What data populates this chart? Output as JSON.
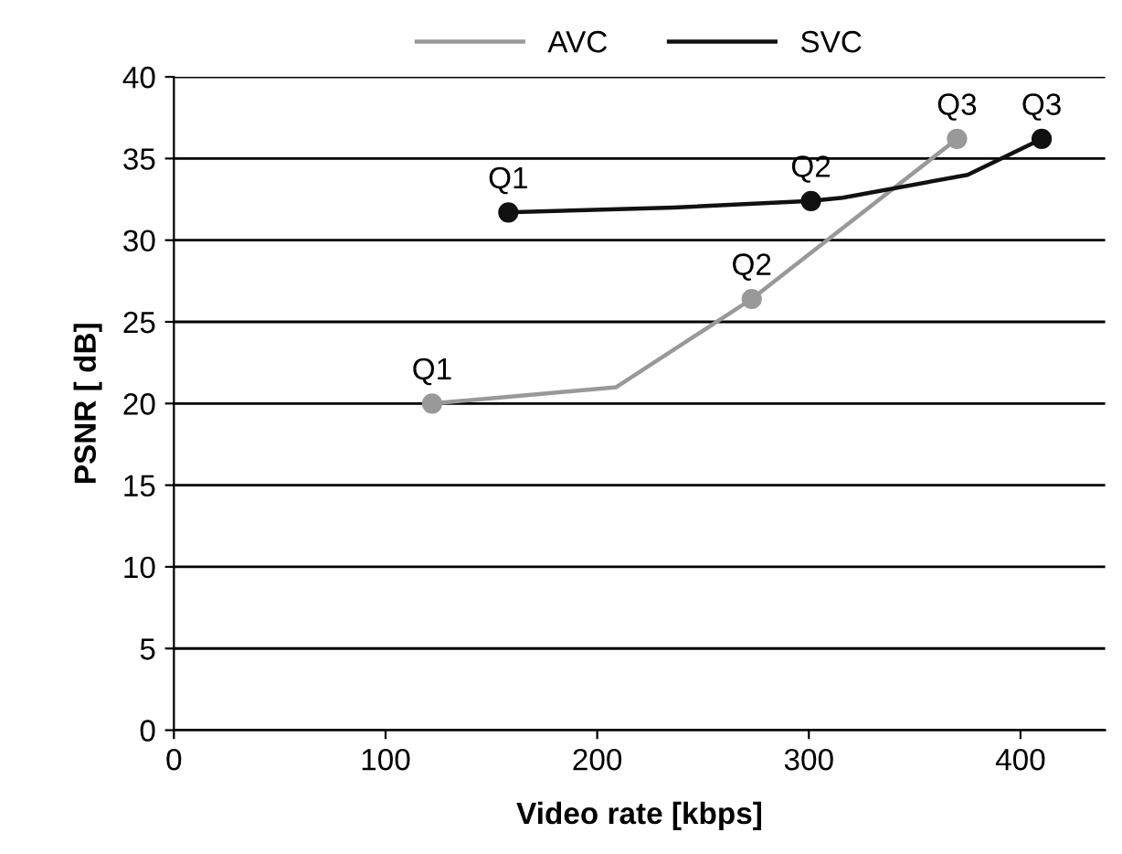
{
  "chart_data": {
    "type": "line",
    "xlabel": "Video rate [kbps]",
    "ylabel": "PSNR [ dB]",
    "xlim": [
      0,
      440
    ],
    "xticks": [
      0,
      100,
      200,
      300,
      400
    ],
    "ylim": [
      0,
      40
    ],
    "yticks": [
      0,
      5,
      10,
      15,
      20,
      25,
      30,
      35,
      40
    ],
    "grid": "y",
    "legend": "top",
    "marker": "circle",
    "line_style": "solid",
    "series": [
      {
        "name": "AVC",
        "color": "#999999",
        "x": [
          122,
          209,
          273,
          370
        ],
        "values": [
          20,
          21,
          26.4,
          36.2
        ]
      },
      {
        "name": "SVC",
        "color": "#111111",
        "x": [
          158,
          236,
          301,
          316,
          375,
          410
        ],
        "values": [
          31.7,
          32,
          32.4,
          32.6,
          34,
          36.2
        ]
      }
    ],
    "annotations": [
      {
        "text": "Q1",
        "x": 122,
        "y": 20
      },
      {
        "text": "Q2",
        "x": 273,
        "y": 26.4
      },
      {
        "text": "Q3",
        "x": 370,
        "y": 36.2
      },
      {
        "text": "Q1",
        "x": 158,
        "y": 31.7
      },
      {
        "text": "Q2",
        "x": 301,
        "y": 32.4
      },
      {
        "text": "Q3",
        "x": 410,
        "y": 36.2
      }
    ]
  }
}
